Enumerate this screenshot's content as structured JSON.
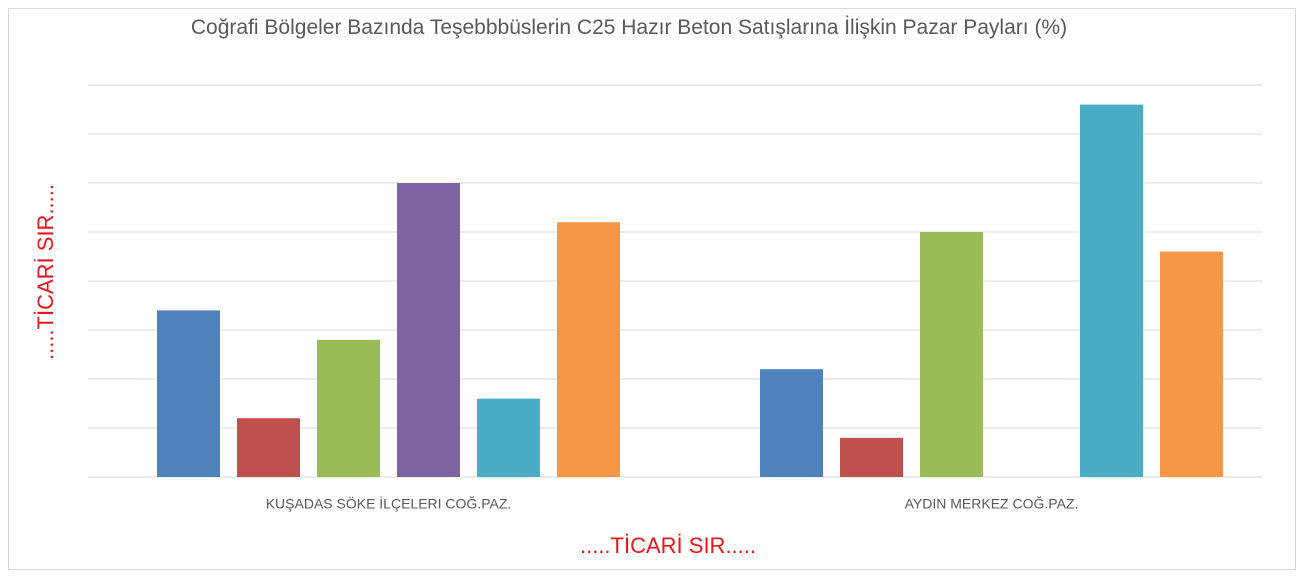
{
  "chart_data": {
    "type": "bar",
    "title": "Coğrafi Bölgeler Bazında Teşebbbüslerin C25 Hazır Beton Satışlarına İlişkin Pazar Payları (%)",
    "xlabel": ".....TİCARİ SIR.....",
    "ylabel": ".....TİCARİ SIR.....",
    "categories": [
      "KUŞADAS SÖKE İLÇELERI COĞ.PAZ.",
      "AYDIN MERKEZ COĞ.PAZ."
    ],
    "series": [
      {
        "color": "#4f81bd",
        "values": [
          3.4,
          2.2
        ]
      },
      {
        "color": "#c0504d",
        "values": [
          1.2,
          0.8
        ]
      },
      {
        "color": "#9bbb59",
        "values": [
          2.8,
          5.0
        ]
      },
      {
        "color": "#8064a2",
        "values": [
          6.0,
          null
        ]
      },
      {
        "color": "#4bacc6",
        "values": [
          1.6,
          7.6
        ]
      },
      {
        "color": "#f79646",
        "values": [
          5.2,
          4.6
        ]
      }
    ],
    "ylim": [
      0,
      8
    ],
    "yticks": [
      0,
      1,
      2,
      3,
      4,
      5,
      6,
      7,
      8
    ],
    "grid": true
  }
}
